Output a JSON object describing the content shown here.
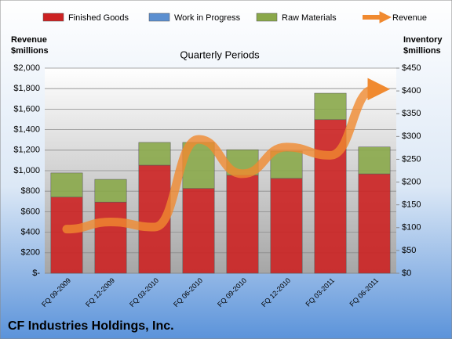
{
  "chart_data": {
    "type": "bar",
    "title": "Quarterly Periods",
    "footer": "CF Industries Holdings, Inc.",
    "ylabel": [
      "Revenue",
      "$millions"
    ],
    "y2label": [
      "Inventory",
      "$millions"
    ],
    "categories": [
      "FQ 09-2009",
      "FQ 12-2009",
      "FQ 03-2010",
      "FQ 06-2010",
      "FQ 09-2010",
      "FQ 12-2010",
      "FQ 03-2011",
      "FQ 06-2011"
    ],
    "series": [
      {
        "name": "Finished Goods",
        "color": "#cc2222",
        "axis": "y2",
        "values": [
          167,
          156,
          237,
          186,
          215,
          208,
          337,
          218
        ]
      },
      {
        "name": "Work in Progress",
        "color": "#5b8fd0",
        "axis": "y2",
        "values": [
          0,
          0,
          0,
          0,
          0,
          0,
          0,
          0
        ]
      },
      {
        "name": "Raw Materials",
        "color": "#8aa84a",
        "axis": "y2",
        "values": [
          53,
          50,
          50,
          101,
          56,
          60,
          58,
          59
        ]
      },
      {
        "name": "Revenue",
        "color": "#f08a30",
        "type": "line",
        "axis": "y",
        "values": [
          430,
          500,
          450,
          1305,
          970,
          1230,
          1150,
          1795
        ]
      }
    ],
    "ylim": [
      0,
      2000
    ],
    "yticks": [
      {
        "value": 0,
        "label": "$-"
      },
      {
        "value": 200,
        "label": "$200"
      },
      {
        "value": 400,
        "label": "$400"
      },
      {
        "value": 600,
        "label": "$600"
      },
      {
        "value": 800,
        "label": "$800"
      },
      {
        "value": 1000,
        "label": "$1,000"
      },
      {
        "value": 1200,
        "label": "$1,200"
      },
      {
        "value": 1400,
        "label": "$1,400"
      },
      {
        "value": 1600,
        "label": "$1,600"
      },
      {
        "value": 1800,
        "label": "$1,800"
      },
      {
        "value": 2000,
        "label": "$2,000"
      }
    ],
    "y2lim": [
      0,
      450
    ],
    "y2ticks": [
      {
        "value": 0,
        "label": "$0"
      },
      {
        "value": 50,
        "label": "$50"
      },
      {
        "value": 100,
        "label": "$100"
      },
      {
        "value": 150,
        "label": "$150"
      },
      {
        "value": 200,
        "label": "$200"
      },
      {
        "value": 250,
        "label": "$250"
      },
      {
        "value": 300,
        "label": "$300"
      },
      {
        "value": 350,
        "label": "$350"
      },
      {
        "value": 400,
        "label": "$400"
      },
      {
        "value": 450,
        "label": "$450"
      }
    ],
    "grid": true
  }
}
